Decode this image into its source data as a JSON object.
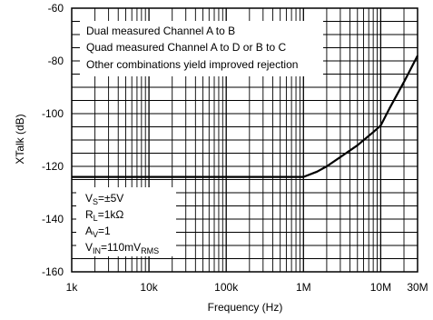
{
  "chart_data": {
    "type": "line",
    "xscale": "log",
    "xlim": [
      1000,
      30000000
    ],
    "ylim": [
      -160,
      -60
    ],
    "xlabel": "Frequency (Hz)",
    "ylabel": "XTalk (dB)",
    "xticks": [
      {
        "value": 1000,
        "label": "1k"
      },
      {
        "value": 10000,
        "label": "10k"
      },
      {
        "value": 100000,
        "label": "100k"
      },
      {
        "value": 1000000,
        "label": "1M"
      },
      {
        "value": 10000000,
        "label": "10M"
      },
      {
        "value": 30000000,
        "label": "30M"
      }
    ],
    "yticks": [
      {
        "value": -60,
        "label": "-60"
      },
      {
        "value": -80,
        "label": "-80"
      },
      {
        "value": -100,
        "label": "-100"
      },
      {
        "value": -120,
        "label": "-120"
      },
      {
        "value": -140,
        "label": "-140"
      },
      {
        "value": -160,
        "label": "-160"
      }
    ],
    "grid": true,
    "series": [
      {
        "x": [
          1000,
          10000,
          100000,
          1000000,
          1500000,
          2000000,
          3000000,
          5000000,
          8000000,
          10000000,
          13000000,
          20000000,
          30000000
        ],
        "y": [
          -124,
          -124,
          -124,
          -124,
          -122,
          -120,
          -116.5,
          -112,
          -107,
          -104.5,
          -98,
          -88,
          -78
        ]
      }
    ],
    "annotations_top": [
      "Dual measured Channel A to B",
      "Quad measured Channel A to D or B to C",
      "Other combinations yield improved rejection"
    ],
    "conditions": [
      {
        "main": "V",
        "sub": "S",
        "rest": "=±5V",
        "sub2": ""
      },
      {
        "main": "R",
        "sub": "L",
        "rest": "=1kΩ",
        "sub2": ""
      },
      {
        "main": "A",
        "sub": "V",
        "rest": "=1",
        "sub2": ""
      },
      {
        "main": "V",
        "sub": "IN",
        "rest": "=110mV",
        "sub2": "RMS"
      }
    ],
    "line_color": "#000000"
  }
}
